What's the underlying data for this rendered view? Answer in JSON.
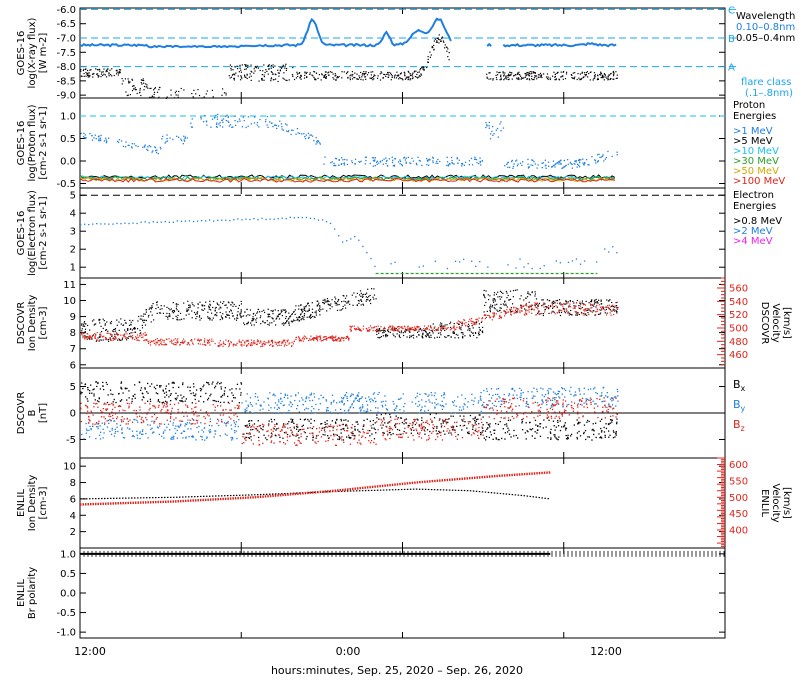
{
  "footer_label": "hours:minutes, Sep. 25, 2020 – Sep. 26, 2020",
  "x_ticks": [
    "12:00",
    "0:00",
    "12:00"
  ],
  "colors": {
    "black": "#000000",
    "blue": "#1f7fe0",
    "cyan": "#19c2ee",
    "green": "#2ca02c",
    "yellow": "#d6a800",
    "red": "#e0241b",
    "magenta": "#ee22ee",
    "dashed_cyan": "#19a7ee"
  },
  "chart_data": [
    {
      "type": "line",
      "ylabel": "GOES-16 log(X-ray flux) [W m-2]",
      "yticks": [
        "-6.0",
        "-6.5",
        "-7.0",
        "-7.5",
        "-8.0",
        "-8.5",
        "-9.0"
      ],
      "ylim": [
        -9.1,
        -5.95
      ],
      "series": [
        {
          "name": "0.10–0.8nm",
          "color": "black"
        },
        {
          "name": "0.05–0.4nm",
          "color": "blue"
        }
      ],
      "legend": {
        "title": "Wavelength",
        "items": [
          "0.10–0.8nm",
          "0.05–0.4nm"
        ],
        "extra": [
          "flare class",
          "(.1–.8nm)"
        ]
      },
      "flare_class_levels": [
        {
          "label": "A",
          "y": -8.0
        },
        {
          "label": "B",
          "y": -7.0
        },
        {
          "label": "C",
          "y": -6.0
        }
      ]
    },
    {
      "type": "scatter",
      "ylabel": "GOES-16 log(Proton flux) [cm-2 s-1 sr-1]",
      "yticks": [
        "1.0",
        "0.5",
        "0.0",
        "-0.5"
      ],
      "ylim": [
        -0.6,
        1.4
      ],
      "reference_y": 1.0,
      "legend": {
        "title": "Proton Energies",
        "items": [
          ">1 MeV",
          ">5 MeV",
          ">10 MeV",
          ">30 MeV",
          ">50 MeV",
          ">100 MeV"
        ]
      }
    },
    {
      "type": "scatter",
      "ylabel": "GOES-16 log(Electron flux) [cm-2 s-1 sr-1]",
      "yticks": [
        "5",
        "4",
        "3",
        "2",
        "1"
      ],
      "ylim": [
        0.4,
        5.4
      ],
      "reference_y": 5.0,
      "legend": {
        "title": "Electron Energies",
        "items": [
          ">0.8 MeV",
          ">2 MeV",
          ">4 MeV"
        ]
      }
    },
    {
      "type": "scatter",
      "ylabel": "DSCOVR Ion Density [cm-3]",
      "yticks": [
        "11",
        "10",
        "9",
        "8",
        "7",
        "6"
      ],
      "ylim": [
        5.8,
        11.4
      ],
      "right_axis": {
        "label": "DSCOVR Velocity [km/s]",
        "ticks": [
          "560",
          "540",
          "520",
          "500",
          "480",
          "460"
        ],
        "range": [
          440,
          575
        ]
      }
    },
    {
      "type": "scatter",
      "ylabel": "DSCOVR B [nT]",
      "yticks": [
        "5",
        "0",
        "-5"
      ],
      "ylim": [
        -8.5,
        8.5
      ],
      "legend": {
        "items": [
          "Bx",
          "By",
          "Bz"
        ]
      }
    },
    {
      "type": "line",
      "ylabel": "ENLIL Ion Density [cm-3]",
      "yticks": [
        "10",
        "8",
        "6",
        "4",
        "2"
      ],
      "ylim": [
        0,
        11
      ],
      "right_axis": {
        "label": "ENLIL Velocity [km/s]",
        "ticks": [
          "600",
          "550",
          "500",
          "450",
          "400"
        ],
        "range": [
          345,
          620
        ]
      },
      "density_points": [
        [
          11,
          6.0
        ],
        [
          18,
          6.2
        ],
        [
          24,
          6.5
        ],
        [
          30,
          6.9
        ],
        [
          36,
          7.2
        ],
        [
          40,
          7.0
        ],
        [
          44,
          6.4
        ],
        [
          46,
          6.0
        ]
      ],
      "velocity_points": [
        [
          11,
          478
        ],
        [
          18,
          487
        ],
        [
          24,
          500
        ],
        [
          30,
          520
        ],
        [
          36,
          545
        ],
        [
          42,
          565
        ],
        [
          46,
          576
        ]
      ]
    },
    {
      "type": "line",
      "ylabel": "ENLIL Br polarity",
      "yticks": [
        "1.0",
        "0.5",
        "0.0",
        "-0.5",
        "-1.0"
      ],
      "ylim": [
        -1.15,
        1.15
      ],
      "points": [
        [
          11,
          1.0
        ],
        [
          46,
          1.0
        ]
      ]
    }
  ]
}
